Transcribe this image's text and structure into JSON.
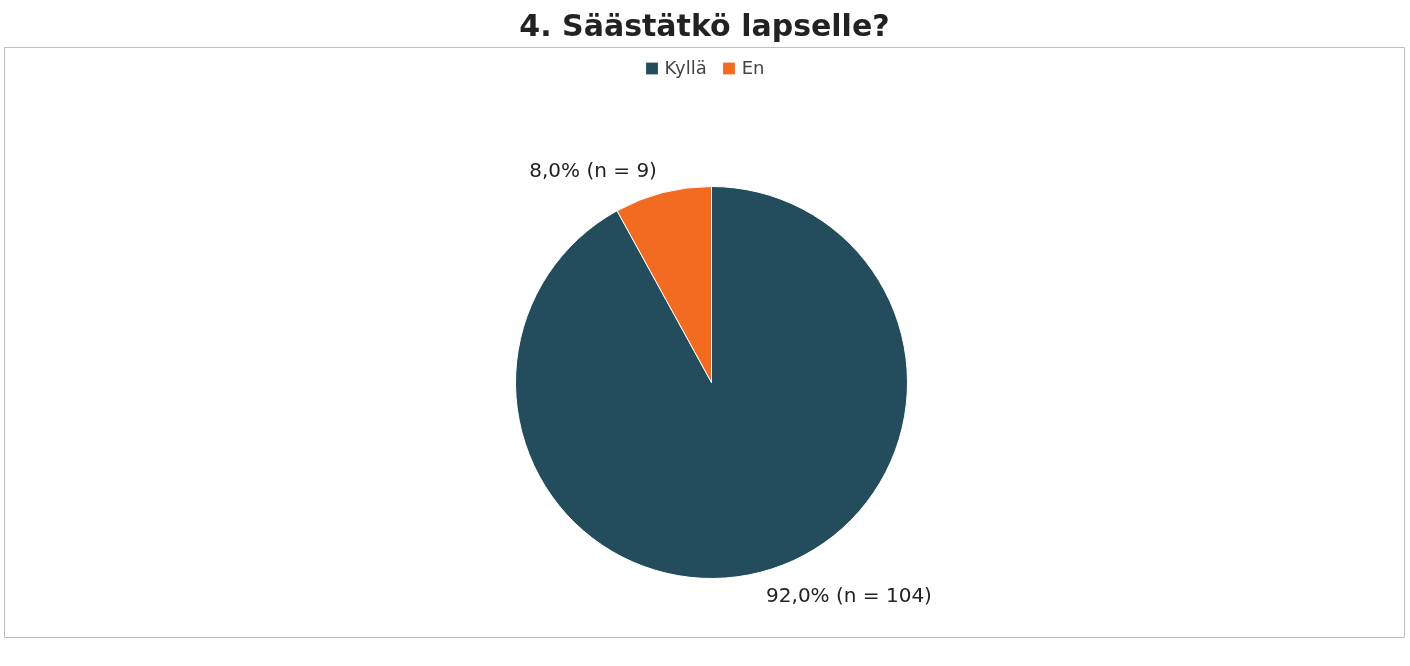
{
  "chart_data": {
    "type": "pie",
    "title": "4. Säästätkö lapselle?",
    "categories": [
      "Kyllä",
      "En"
    ],
    "values": [
      92.0,
      8.0
    ],
    "value_labels": [
      "92,0% (n = 104)",
      "8,0% (n = 9)"
    ],
    "colors": [
      "#234d5c",
      "#f26b21"
    ],
    "legend": "top"
  }
}
